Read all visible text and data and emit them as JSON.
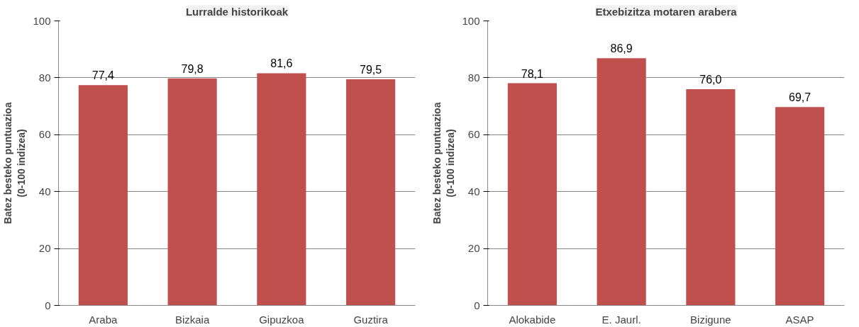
{
  "chart_data": [
    {
      "type": "bar",
      "title": "Lurralde historikoak",
      "ylabel": "Batez besteko puntuazioa\n(0-100 indizea)",
      "categories": [
        "Araba",
        "Bizkaia",
        "Gipuzkoa",
        "Guztira"
      ],
      "values": [
        77.4,
        79.8,
        81.6,
        79.5
      ],
      "value_labels": [
        "77,4",
        "79,8",
        "81,6",
        "79,5"
      ],
      "color": "#c0504d",
      "ylim": [
        0,
        100
      ],
      "yticks": [
        0,
        20,
        40,
        60,
        80,
        100
      ],
      "grid": "y"
    },
    {
      "type": "bar",
      "title": "Etxebizitza motaren arabera",
      "ylabel": "Batez besteko puntuazioa\n(0-100 indizea)",
      "categories": [
        "Alokabide",
        "E. Jaurl.",
        "Bizigune",
        "ASAP"
      ],
      "values": [
        78.1,
        86.9,
        76.0,
        69.7
      ],
      "value_labels": [
        "78,1",
        "86,9",
        "76,0",
        "69,7"
      ],
      "color": "#c0504d",
      "ylim": [
        0,
        100
      ],
      "yticks": [
        0,
        20,
        40,
        60,
        80,
        100
      ],
      "grid": "y"
    }
  ]
}
